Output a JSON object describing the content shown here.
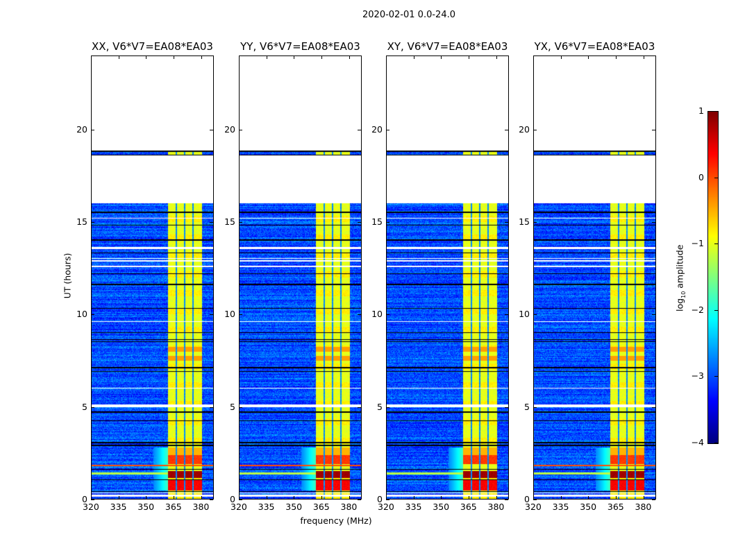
{
  "figure": {
    "suptitle": "2020-02-01 0.0-24.0",
    "xlabel": "frequency (MHz)",
    "ylabel": "UT (hours)",
    "colorbar": {
      "label_prefix": "log",
      "label_sub": "10",
      "label_suffix": " amplitude",
      "range": [
        -4,
        1
      ],
      "ticks": [
        1,
        0,
        -1,
        -2,
        -3,
        -4
      ],
      "tick_labels": [
        "1",
        "0",
        "−1",
        "−2",
        "−3",
        "−4"
      ],
      "colormap": "jet"
    }
  },
  "chart_data": {
    "type": "heatmap",
    "panels": [
      {
        "title": "XX, V6*V7=EA08*EA03",
        "red_line": true
      },
      {
        "title": "YY, V6*V7=EA08*EA03",
        "red_line": true
      },
      {
        "title": "XY, V6*V7=EA08*EA03",
        "red_line": false
      },
      {
        "title": "YX, V6*V7=EA08*EA03",
        "red_line": true
      }
    ],
    "xlim": [
      320,
      387
    ],
    "ylim": [
      0,
      24
    ],
    "xticks": [
      320,
      335,
      350,
      365,
      380
    ],
    "xtick_labels": [
      "320",
      "335",
      "350",
      "365",
      "380"
    ],
    "yticks": [
      0,
      5,
      10,
      15,
      20
    ],
    "ytick_labels": [
      "0",
      "5",
      "10",
      "15",
      "20"
    ],
    "no_data_hours": [
      [
        16.0,
        18.6
      ],
      [
        18.85,
        24.0
      ]
    ],
    "rfi_band_mhz": [
      362,
      380.5
    ],
    "rfi_band_gaps_mhz": [
      366.5,
      371,
      375.5
    ],
    "background_log_amp": -3.0,
    "band_log_amp": -1.0,
    "strong_rfi_hours": [
      {
        "hours": [
          0.5,
          1.05
        ],
        "value": 0.4
      },
      {
        "hours": [
          1.15,
          1.55
        ],
        "value": 0.85
      },
      {
        "hours": [
          1.9,
          2.4
        ],
        "value": 0.1
      }
    ]
  }
}
